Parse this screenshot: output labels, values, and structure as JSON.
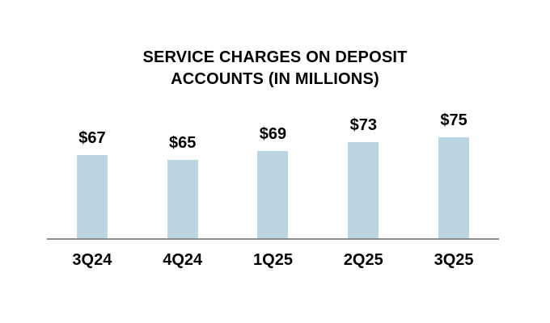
{
  "chart_data": {
    "type": "bar",
    "title": "SERVICE CHARGES ON DEPOSIT ACCOUNTS (IN MILLIONS)",
    "title_lines": [
      "SERVICE CHARGES ON DEPOSIT",
      "ACCOUNTS (IN MILLIONS)"
    ],
    "categories": [
      "3Q24",
      "4Q24",
      "1Q25",
      "2Q25",
      "3Q25"
    ],
    "values": [
      67,
      65,
      69,
      73,
      75
    ],
    "value_labels": [
      "$67",
      "$65",
      "$69",
      "$73",
      "$75"
    ],
    "unit": "USD millions",
    "xlabel": "",
    "ylabel": "",
    "ylim": [
      30,
      80
    ],
    "grid": false,
    "legend": false,
    "colors": {
      "bar_fill": "#BCD5E2",
      "axis_line": "#8C8C8C",
      "text": "#000000",
      "background": "#FFFFFF"
    }
  }
}
